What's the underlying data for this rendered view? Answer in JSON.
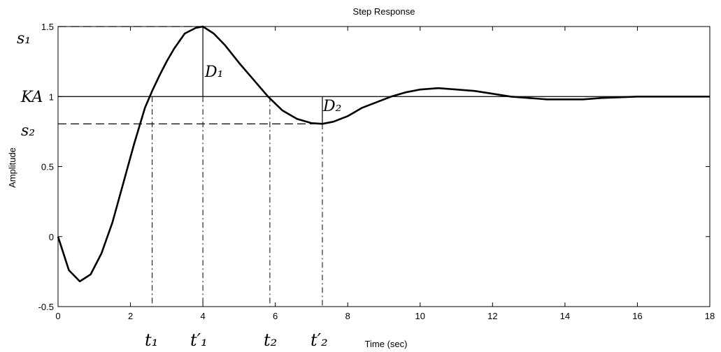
{
  "chart_data": {
    "type": "line",
    "title": "Step Response",
    "xlabel": "Time (sec)",
    "ylabel": "Amplitude",
    "xlim": [
      0,
      18
    ],
    "ylim": [
      -0.5,
      1.5
    ],
    "xticks": [
      0,
      2,
      4,
      6,
      8,
      10,
      12,
      14,
      16,
      18
    ],
    "xtick_labels": [
      "0",
      "2",
      "4",
      "6",
      "8",
      "10",
      "12",
      "14",
      "16",
      "18"
    ],
    "yticks": [
      -0.5,
      0,
      0.5,
      1,
      1.5
    ],
    "ytick_labels": [
      "-0.5",
      "0",
      "0.5",
      "1",
      "1.5"
    ],
    "grid": false,
    "series": [
      {
        "x": [
          0,
          0.3,
          0.6,
          0.9,
          1.2,
          1.5,
          1.8,
          2.1,
          2.4,
          2.6,
          2.8,
          3.0,
          3.2,
          3.5,
          3.8,
          4.0,
          4.3,
          4.6,
          5.0,
          5.4,
          5.8,
          6.2,
          6.6,
          7.0,
          7.3,
          7.6,
          8.0,
          8.4,
          8.8,
          9.2,
          9.6,
          10.0,
          10.5,
          11.0,
          11.5,
          12.0,
          12.5,
          13.0,
          13.5,
          14.0,
          14.5,
          15.0,
          15.5,
          16.0,
          16.5,
          17.0,
          18.0
        ],
        "y": [
          0,
          -0.24,
          -0.32,
          -0.27,
          -0.12,
          0.1,
          0.38,
          0.66,
          0.92,
          1.04,
          1.15,
          1.25,
          1.34,
          1.45,
          1.49,
          1.5,
          1.45,
          1.37,
          1.24,
          1.12,
          1.0,
          0.9,
          0.84,
          0.81,
          0.805,
          0.82,
          0.86,
          0.92,
          0.96,
          1.0,
          1.03,
          1.05,
          1.06,
          1.05,
          1.04,
          1.02,
          1.0,
          0.99,
          0.98,
          0.98,
          0.98,
          0.99,
          0.995,
          1.0,
          1.0,
          1.0,
          1.0
        ]
      }
    ],
    "reference_lines": {
      "steady_state_y": 1.0,
      "s1_y": 1.5,
      "s2_y": 0.805,
      "t1_x": 2.6,
      "t1p_x": 4.0,
      "t2_x": 5.85,
      "t2p_x": 7.3
    },
    "annotations": {
      "s1": "s₁",
      "s2": "s₂",
      "ka": "KA",
      "d1": "D₁",
      "d2": "D₂",
      "t1": "t₁",
      "t1p": "t′₁",
      "t2": "t₂",
      "t2p": "t′₂"
    }
  }
}
